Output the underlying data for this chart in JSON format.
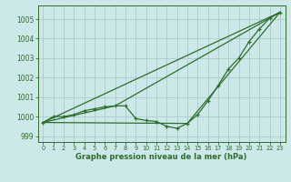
{
  "title": "Graphe pression niveau de la mer (hPa)",
  "bg_color": "#cce8e8",
  "grid_color": "#aacccc",
  "line_color": "#2d6e2d",
  "xlim": [
    -0.5,
    23.5
  ],
  "ylim": [
    998.7,
    1005.7
  ],
  "yticks": [
    999,
    1000,
    1001,
    1002,
    1003,
    1004,
    1005
  ],
  "xticks": [
    0,
    1,
    2,
    3,
    4,
    5,
    6,
    7,
    8,
    9,
    10,
    11,
    12,
    13,
    14,
    15,
    16,
    17,
    18,
    19,
    20,
    21,
    22,
    23
  ],
  "series_main": [
    [
      0,
      999.7
    ],
    [
      1,
      1000.0
    ],
    [
      2,
      1000.0
    ],
    [
      3,
      1000.1
    ],
    [
      4,
      1000.3
    ],
    [
      5,
      1000.4
    ],
    [
      6,
      1000.5
    ],
    [
      7,
      1000.55
    ],
    [
      8,
      1000.55
    ],
    [
      9,
      999.9
    ],
    [
      10,
      999.8
    ],
    [
      11,
      999.75
    ],
    [
      12,
      999.5
    ],
    [
      13,
      999.4
    ],
    [
      14,
      999.65
    ],
    [
      15,
      1000.1
    ],
    [
      16,
      1000.8
    ],
    [
      17,
      1001.6
    ],
    [
      18,
      1002.45
    ],
    [
      19,
      1003.0
    ],
    [
      20,
      1003.85
    ],
    [
      21,
      1004.5
    ],
    [
      22,
      1005.05
    ],
    [
      23,
      1005.35
    ]
  ],
  "series_linear1": [
    [
      0,
      999.7
    ],
    [
      23,
      1005.35
    ]
  ],
  "series_linear2": [
    [
      0,
      999.7
    ],
    [
      7,
      1000.55
    ],
    [
      23,
      1005.35
    ]
  ],
  "series_linear3": [
    [
      0,
      999.7
    ],
    [
      14,
      999.65
    ],
    [
      23,
      1005.35
    ]
  ]
}
